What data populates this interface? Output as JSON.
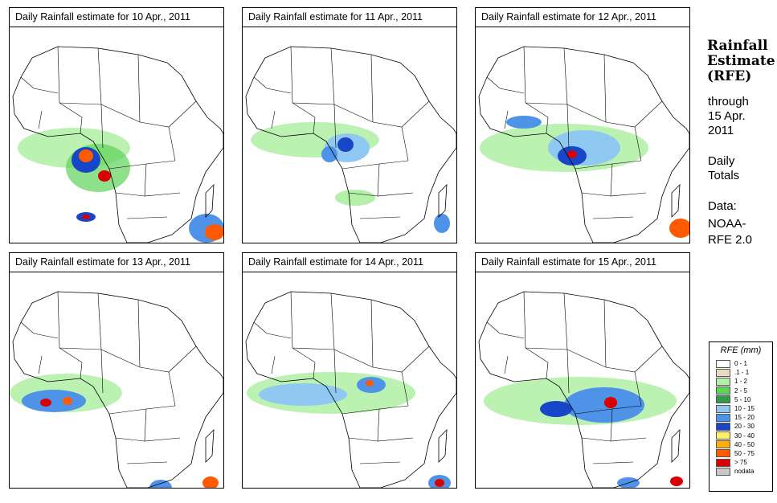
{
  "panels": [
    {
      "title": "Daily Rainfall estimate for  10 Apr., 2011"
    },
    {
      "title": "Daily Rainfall estimate for  11 Apr., 2011"
    },
    {
      "title": "Daily Rainfall estimate for  12 Apr., 2011"
    },
    {
      "title": "Daily Rainfall estimate for  13 Apr., 2011"
    },
    {
      "title": "Daily Rainfall estimate for  14 Apr., 2011"
    },
    {
      "title": "Daily Rainfall estimate for  15 Apr., 2011"
    }
  ],
  "side": {
    "title_line1": "Rainfall",
    "title_line2": "Estimate",
    "title_line3": "(RFE)",
    "through_label": "through",
    "date_line1": "15 Apr.",
    "date_line2": "2011",
    "period_line1": "Daily",
    "period_line2": "Totals",
    "data_label": "Data:",
    "source_line1": "NOAA-",
    "source_line2": "RFE 2.0"
  },
  "legend": {
    "title": "RFE (mm)",
    "items": [
      {
        "label": "0 - 1",
        "color": "#ffffff"
      },
      {
        "label": ".1 - 1",
        "color": "#ead9c2"
      },
      {
        "label": "1 - 2",
        "color": "#b4f0a8"
      },
      {
        "label": "2 - 5",
        "color": "#5fd35a"
      },
      {
        "label": "5 - 10",
        "color": "#2f9e46"
      },
      {
        "label": "10 - 15",
        "color": "#8fc9f2"
      },
      {
        "label": "15 - 20",
        "color": "#4f93e8"
      },
      {
        "label": "20 - 30",
        "color": "#1846c9"
      },
      {
        "label": "30 - 40",
        "color": "#fff06a"
      },
      {
        "label": "40 - 50",
        "color": "#ffb000"
      },
      {
        "label": "50 - 75",
        "color": "#ff5a00"
      },
      {
        "label": "> 75",
        "color": "#d80000"
      },
      {
        "label": "nodata",
        "color": "#c8c8c8"
      }
    ]
  }
}
